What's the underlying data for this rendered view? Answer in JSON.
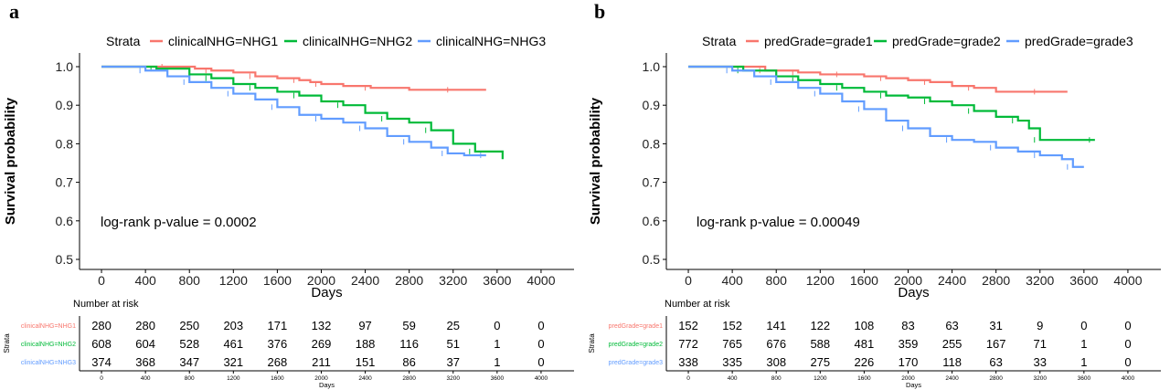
{
  "panels": [
    {
      "panel_label": "a",
      "legend_title": "Strata",
      "annotation": "log-rank p-value =  0.0002",
      "risk_table_title": "Number at risk",
      "risk_strata_axis_label": "Strata",
      "risk_x_axis_label": "Days",
      "chart_data": {
        "type": "line",
        "title": "",
        "xlabel": "Days",
        "ylabel": "Survival probability",
        "xlim": [
          0,
          4000
        ],
        "ylim": [
          0.5,
          1.0
        ],
        "x_ticks": [
          0,
          400,
          800,
          1200,
          1600,
          2000,
          2400,
          2800,
          3200,
          3600,
          4000
        ],
        "y_ticks": [
          0.5,
          0.6,
          0.7,
          0.8,
          0.9,
          1.0
        ],
        "y_tick_labels": [
          "0.5",
          "0.6",
          "0.7",
          "0.8",
          "0.9",
          "1.0"
        ],
        "grid": false,
        "legend_position": "top",
        "series": [
          {
            "name": "clinicalNHG=NHG1",
            "color": "#F8766D",
            "points": [
              [
                0,
                1.0
              ],
              [
                400,
                1.0
              ],
              [
                600,
                1.0
              ],
              [
                850,
                0.995
              ],
              [
                1000,
                0.99
              ],
              [
                1200,
                0.985
              ],
              [
                1400,
                0.975
              ],
              [
                1600,
                0.97
              ],
              [
                1800,
                0.965
              ],
              [
                1900,
                0.96
              ],
              [
                2000,
                0.955
              ],
              [
                2200,
                0.95
              ],
              [
                2450,
                0.945
              ],
              [
                2800,
                0.94
              ],
              [
                3200,
                0.94
              ],
              [
                3500,
                0.94
              ]
            ]
          },
          {
            "name": "clinicalNHG=NHG2",
            "color": "#00BA38",
            "points": [
              [
                0,
                1.0
              ],
              [
                300,
                1.0
              ],
              [
                500,
                0.995
              ],
              [
                800,
                0.98
              ],
              [
                1000,
                0.97
              ],
              [
                1200,
                0.955
              ],
              [
                1400,
                0.945
              ],
              [
                1600,
                0.935
              ],
              [
                1800,
                0.925
              ],
              [
                2000,
                0.91
              ],
              [
                2200,
                0.9
              ],
              [
                2400,
                0.88
              ],
              [
                2600,
                0.865
              ],
              [
                2800,
                0.855
              ],
              [
                3000,
                0.835
              ],
              [
                3200,
                0.8
              ],
              [
                3400,
                0.78
              ],
              [
                3650,
                0.76
              ]
            ]
          },
          {
            "name": "clinicalNHG=NHG3",
            "color": "#619CFF",
            "points": [
              [
                0,
                1.0
              ],
              [
                300,
                1.0
              ],
              [
                400,
                0.99
              ],
              [
                600,
                0.975
              ],
              [
                800,
                0.96
              ],
              [
                1000,
                0.945
              ],
              [
                1200,
                0.93
              ],
              [
                1400,
                0.915
              ],
              [
                1600,
                0.895
              ],
              [
                1800,
                0.875
              ],
              [
                2000,
                0.865
              ],
              [
                2200,
                0.855
              ],
              [
                2400,
                0.84
              ],
              [
                2600,
                0.82
              ],
              [
                2800,
                0.805
              ],
              [
                3000,
                0.79
              ],
              [
                3150,
                0.775
              ],
              [
                3300,
                0.77
              ],
              [
                3500,
                0.77
              ]
            ]
          }
        ]
      },
      "risk_table": {
        "times": [
          0,
          400,
          800,
          1200,
          1600,
          2000,
          2400,
          2800,
          3200,
          3600,
          4000
        ],
        "x_tick_labels": [
          "0",
          "400",
          "800",
          "1200",
          "1600",
          "2000",
          "2400",
          "2800",
          "3200",
          "3600",
          "4000"
        ],
        "rows": [
          {
            "name": "clinicalNHG=NHG1",
            "color": "#F8766D",
            "counts": [
              "280",
              "280",
              "250",
              "203",
              "171",
              "132",
              "97",
              "59",
              "25",
              "0",
              "0"
            ]
          },
          {
            "name": "clinicalNHG=NHG2",
            "color": "#00BA38",
            "counts": [
              "608",
              "604",
              "528",
              "461",
              "376",
              "269",
              "188",
              "116",
              "51",
              "1",
              "0"
            ]
          },
          {
            "name": "clinicalNHG=NHG3",
            "color": "#619CFF",
            "counts": [
              "374",
              "368",
              "347",
              "321",
              "268",
              "211",
              "151",
              "86",
              "37",
              "1",
              "0"
            ]
          }
        ]
      }
    },
    {
      "panel_label": "b",
      "legend_title": "Strata",
      "annotation": "log-rank p-value = 0.00049",
      "risk_table_title": "Number at risk",
      "risk_strata_axis_label": "Strata",
      "risk_x_axis_label": "Days",
      "chart_data": {
        "type": "line",
        "title": "",
        "xlabel": "Days",
        "ylabel": "Survival probability",
        "xlim": [
          0,
          4000
        ],
        "ylim": [
          0.5,
          1.0
        ],
        "x_ticks": [
          0,
          400,
          800,
          1200,
          1600,
          2000,
          2400,
          2800,
          3200,
          3600,
          4000
        ],
        "y_ticks": [
          0.5,
          0.6,
          0.7,
          0.8,
          0.9,
          1.0
        ],
        "y_tick_labels": [
          "0.5",
          "0.6",
          "0.7",
          "0.8",
          "0.9",
          "1.0"
        ],
        "grid": false,
        "legend_position": "top",
        "series": [
          {
            "name": "predGrade=grade1",
            "color": "#F8766D",
            "points": [
              [
                0,
                1.0
              ],
              [
                500,
                1.0
              ],
              [
                700,
                0.99
              ],
              [
                800,
                0.99
              ],
              [
                1000,
                0.985
              ],
              [
                1200,
                0.98
              ],
              [
                1400,
                0.98
              ],
              [
                1600,
                0.975
              ],
              [
                1800,
                0.97
              ],
              [
                2000,
                0.965
              ],
              [
                2200,
                0.96
              ],
              [
                2400,
                0.95
              ],
              [
                2600,
                0.945
              ],
              [
                2800,
                0.935
              ],
              [
                3200,
                0.935
              ],
              [
                3450,
                0.935
              ]
            ]
          },
          {
            "name": "predGrade=grade2",
            "color": "#00BA38",
            "points": [
              [
                0,
                1.0
              ],
              [
                300,
                1.0
              ],
              [
                500,
                0.99
              ],
              [
                800,
                0.975
              ],
              [
                1000,
                0.965
              ],
              [
                1200,
                0.955
              ],
              [
                1400,
                0.945
              ],
              [
                1600,
                0.935
              ],
              [
                1800,
                0.925
              ],
              [
                2000,
                0.92
              ],
              [
                2200,
                0.91
              ],
              [
                2400,
                0.9
              ],
              [
                2600,
                0.885
              ],
              [
                2800,
                0.87
              ],
              [
                3000,
                0.86
              ],
              [
                3100,
                0.84
              ],
              [
                3200,
                0.81
              ],
              [
                3400,
                0.81
              ],
              [
                3700,
                0.81
              ]
            ]
          },
          {
            "name": "predGrade=grade3",
            "color": "#619CFF",
            "points": [
              [
                0,
                1.0
              ],
              [
                300,
                1.0
              ],
              [
                400,
                0.99
              ],
              [
                600,
                0.975
              ],
              [
                800,
                0.96
              ],
              [
                1000,
                0.945
              ],
              [
                1200,
                0.93
              ],
              [
                1400,
                0.91
              ],
              [
                1600,
                0.89
              ],
              [
                1800,
                0.86
              ],
              [
                2000,
                0.84
              ],
              [
                2200,
                0.82
              ],
              [
                2400,
                0.81
              ],
              [
                2600,
                0.805
              ],
              [
                2800,
                0.79
              ],
              [
                3000,
                0.78
              ],
              [
                3200,
                0.77
              ],
              [
                3400,
                0.76
              ],
              [
                3500,
                0.74
              ],
              [
                3600,
                0.74
              ]
            ]
          }
        ]
      },
      "risk_table": {
        "times": [
          0,
          400,
          800,
          1200,
          1600,
          2000,
          2400,
          2800,
          3200,
          3600,
          4000
        ],
        "x_tick_labels": [
          "0",
          "400",
          "800",
          "1200",
          "1600",
          "2000",
          "2400",
          "2800",
          "3200",
          "3600",
          "4000"
        ],
        "rows": [
          {
            "name": "predGrade=grade1",
            "color": "#F8766D",
            "counts": [
              "152",
              "152",
              "141",
              "122",
              "108",
              "83",
              "63",
              "31",
              "9",
              "0",
              "0"
            ]
          },
          {
            "name": "predGrade=grade2",
            "color": "#00BA38",
            "counts": [
              "772",
              "765",
              "676",
              "588",
              "481",
              "359",
              "255",
              "167",
              "71",
              "1",
              "0"
            ]
          },
          {
            "name": "predGrade=grade3",
            "color": "#619CFF",
            "counts": [
              "338",
              "335",
              "308",
              "275",
              "226",
              "170",
              "118",
              "63",
              "33",
              "1",
              "0"
            ]
          }
        ]
      }
    }
  ]
}
